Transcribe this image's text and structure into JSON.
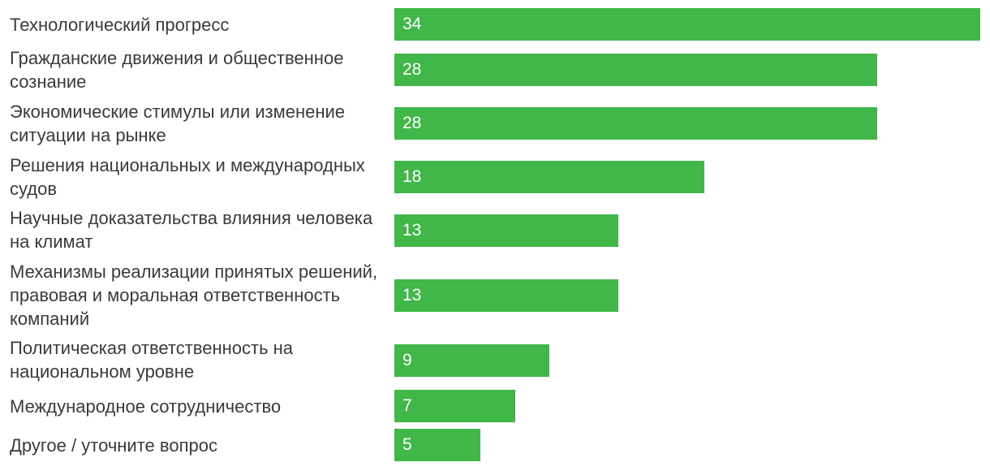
{
  "chart_data": {
    "type": "bar",
    "orientation": "horizontal",
    "categories": [
      "Технологический прогресс",
      "Гражданские движения и общественное сознание",
      "Экономические стимулы или изменение ситуации на рынке",
      "Решения национальных и международных судов",
      "Научные доказательства влияния человека на климат",
      "Механизмы реализации принятых решений, правовая и моральная ответственность компаний",
      "Политическая ответственность на национальном уровне",
      "Международное сотрудничество",
      "Другое / уточните вопрос"
    ],
    "values": [
      34,
      28,
      28,
      18,
      13,
      13,
      9,
      7,
      5
    ],
    "title": "",
    "xlabel": "",
    "ylabel": "",
    "xlim": [
      0,
      34
    ],
    "grid": false,
    "legend": "none",
    "data_labels": "inside-bar-start",
    "bar_color": "#41b649",
    "label_color": "#3a3a3a",
    "value_color": "#ffffff"
  }
}
